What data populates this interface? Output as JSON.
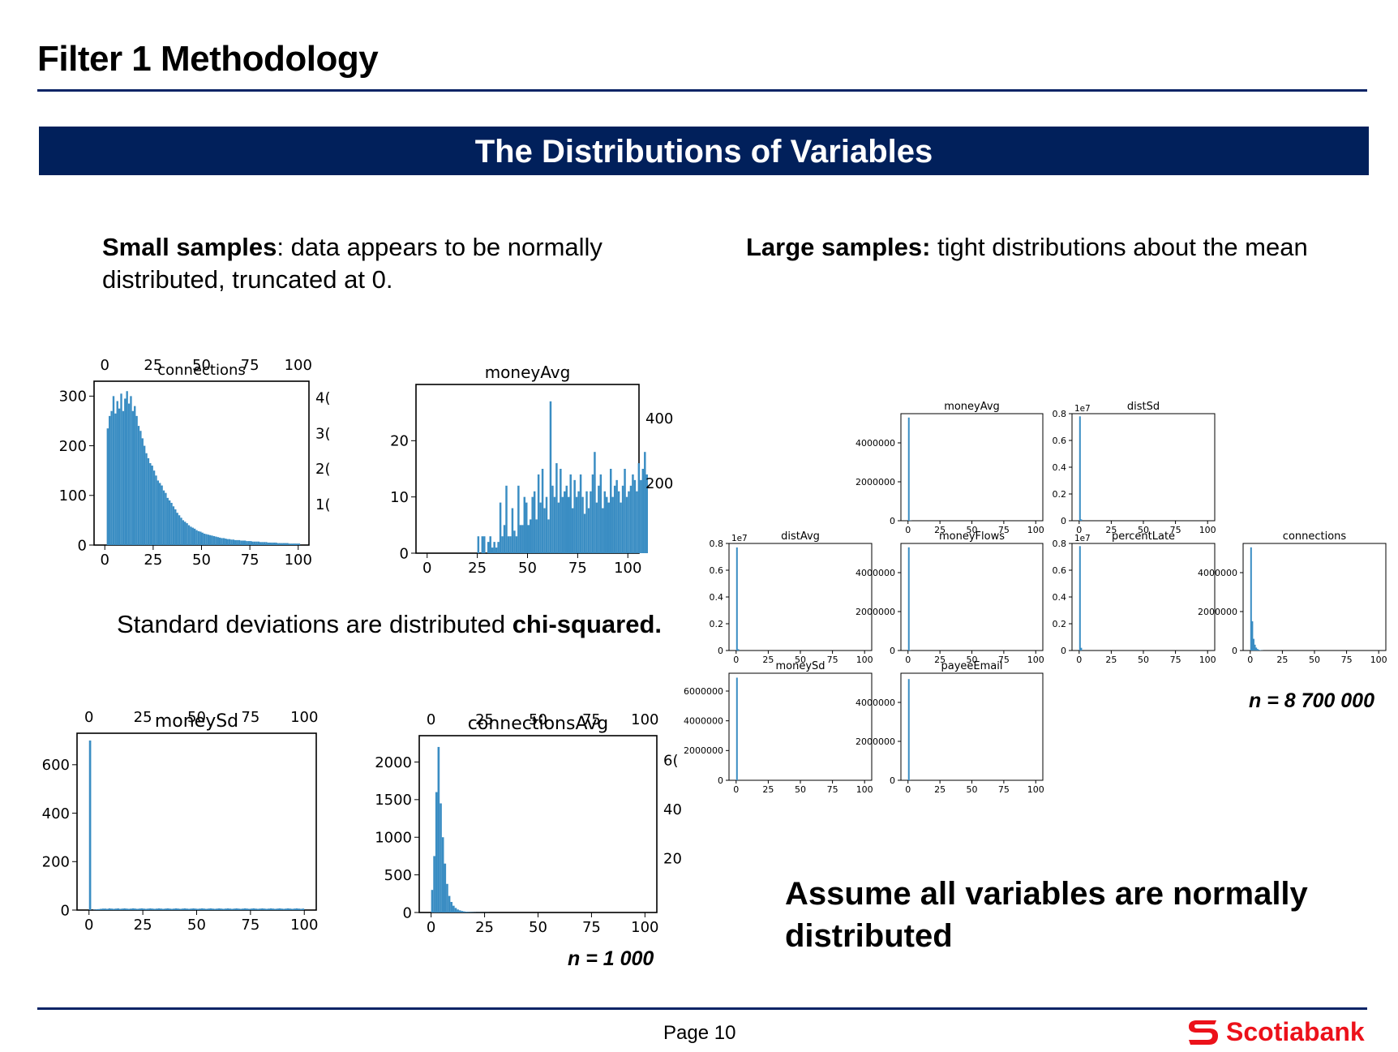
{
  "header": {
    "title": "Filter 1 Methodology"
  },
  "banner": {
    "text": "The Distributions of Variables"
  },
  "left": {
    "small_bold": "Small samples",
    "small_rest": ": data appears to be normally distributed, truncated at 0.",
    "std_prefix": "Standard deviations are distributed ",
    "std_bold": "chi-squared.",
    "n_label": "n = 1 000"
  },
  "right": {
    "large_bold": "Large samples:",
    "large_rest": " tight distributions about the mean",
    "n_label": "n = 8 700 000",
    "assume": "Assume all variables are normally distributed"
  },
  "footer": {
    "page": "Page 10",
    "brand": "Scotiabank"
  },
  "colors": {
    "navy": "#01205b",
    "bar": "#3a8dc3",
    "brand_red": "#ec111a"
  },
  "chart_data": [
    {
      "id": "s-connections",
      "type": "bar",
      "title": "connections",
      "xlim": [
        0,
        100
      ],
      "ylim": [
        0,
        330
      ],
      "x_ticks": [
        0,
        25,
        50,
        75,
        100
      ],
      "y_ticks": [
        0,
        100,
        200,
        300
      ],
      "top_ticks": [
        0,
        25,
        50,
        75,
        100
      ],
      "right_ticks": [
        "1(",
        "2(",
        "3(",
        "4("
      ],
      "bins_x0": 1,
      "bin_width": 1,
      "values": [
        235,
        260,
        270,
        300,
        265,
        290,
        275,
        305,
        270,
        295,
        310,
        285,
        300,
        270,
        280,
        260,
        240,
        230,
        215,
        200,
        185,
        175,
        165,
        160,
        150,
        140,
        130,
        125,
        120,
        110,
        105,
        95,
        90,
        85,
        78,
        72,
        65,
        60,
        55,
        50,
        47,
        44,
        40,
        37,
        35,
        33,
        30,
        28,
        27,
        25,
        23,
        22,
        21,
        20,
        19,
        18,
        17,
        16,
        15,
        14,
        14,
        13,
        12,
        12,
        11,
        11,
        10,
        10,
        10,
        9,
        9,
        9,
        8,
        8,
        8,
        7,
        7,
        7,
        7,
        6,
        6,
        6,
        6,
        5,
        5,
        5,
        5,
        5,
        4,
        4,
        4,
        4,
        4,
        4,
        3,
        3,
        3,
        3,
        3,
        3
      ]
    },
    {
      "id": "s-moneyavg",
      "type": "bar",
      "title": "moneyAvg",
      "xlim": [
        0,
        100
      ],
      "ylim": [
        0,
        30
      ],
      "x_ticks": [
        0,
        25,
        50,
        75,
        100
      ],
      "y_ticks": [
        0,
        10,
        20
      ],
      "right_ticks": [
        "200",
        "400"
      ],
      "bins_x0": 10,
      "bin_width": 1,
      "values": [
        0,
        0,
        0,
        0,
        0,
        0,
        0,
        0,
        0,
        0,
        0,
        0,
        0,
        0,
        0,
        3,
        0,
        3,
        3,
        0,
        2,
        3,
        1,
        2,
        1,
        2,
        9,
        3,
        5,
        12,
        3,
        3,
        8,
        4,
        3,
        12,
        5,
        5,
        10,
        9,
        5,
        6,
        10,
        11,
        6,
        14,
        9,
        15,
        8,
        10,
        6,
        27,
        12,
        10,
        16,
        9,
        15,
        10,
        11,
        12,
        10,
        14,
        8,
        13,
        10,
        11,
        14,
        10,
        7,
        11,
        8,
        11,
        14,
        18,
        9,
        12,
        14,
        8,
        11,
        10,
        9,
        15,
        10,
        12,
        13,
        11,
        9,
        12,
        15,
        10,
        11,
        12,
        14,
        13,
        11,
        16,
        13,
        15,
        18,
        14
      ]
    },
    {
      "id": "s-moneysd",
      "type": "bar",
      "title": "moneySd",
      "xlim": [
        0,
        100
      ],
      "ylim": [
        0,
        730
      ],
      "x_ticks": [
        0,
        25,
        50,
        75,
        100
      ],
      "y_ticks": [
        0,
        200,
        400,
        600
      ],
      "top_ticks": [
        0,
        25,
        50,
        75,
        100
      ],
      "bins_x0": 0,
      "bin_width": 1,
      "values": [
        700,
        0,
        2,
        3,
        4,
        5,
        6,
        6,
        5,
        7,
        6,
        5,
        6,
        7,
        5,
        6,
        7,
        6,
        5,
        6,
        7,
        6,
        5,
        6,
        7,
        6,
        5,
        6,
        7,
        6,
        5,
        6,
        7,
        6,
        5,
        6,
        7,
        6,
        5,
        6,
        7,
        6,
        5,
        6,
        7,
        6,
        5,
        6,
        7,
        6,
        5,
        6,
        7,
        6,
        5,
        6,
        7,
        6,
        5,
        6,
        7,
        6,
        5,
        6,
        7,
        6,
        5,
        6,
        7,
        6,
        5,
        6,
        7,
        6,
        5,
        6,
        7,
        6,
        5,
        6,
        7,
        6,
        5,
        6,
        7,
        6,
        5,
        6,
        7,
        6,
        5,
        6,
        7,
        6,
        5,
        6,
        7,
        6,
        5,
        6
      ]
    },
    {
      "id": "s-connectionsavg",
      "type": "bar",
      "title": "connectionsAvg",
      "xlim": [
        0,
        100
      ],
      "ylim": [
        0,
        2350
      ],
      "x_ticks": [
        0,
        25,
        50,
        75,
        100
      ],
      "y_ticks": [
        0,
        500,
        1000,
        1500,
        2000
      ],
      "top_ticks": [
        0,
        25,
        50,
        75,
        100
      ],
      "right_ticks": [
        "20",
        "40",
        "6("
      ],
      "bins_x0": 0,
      "bin_width": 1,
      "values": [
        300,
        750,
        1600,
        2200,
        1450,
        1000,
        650,
        380,
        220,
        140,
        90,
        60,
        40,
        28,
        20,
        14,
        10,
        7,
        5,
        4,
        3,
        2,
        2,
        1,
        1,
        1,
        1,
        0,
        0,
        0
      ]
    },
    {
      "id": "l-moneyavg",
      "type": "bar",
      "title": "moneyAvg",
      "xlim": [
        0,
        100
      ],
      "ylim": [
        0,
        5500000
      ],
      "x_ticks": [
        0,
        25,
        50,
        75,
        100
      ],
      "y_ticks": [
        0,
        2000000,
        4000000
      ],
      "bins_x0": 0,
      "bin_width": 1,
      "values": [
        5300000,
        10000,
        5000
      ]
    },
    {
      "id": "l-distsd",
      "type": "bar",
      "title": "distSd",
      "scale_label": "1e7",
      "xlim": [
        0,
        100
      ],
      "ylim": [
        0,
        0.8
      ],
      "x_ticks": [
        0,
        25,
        50,
        75,
        100
      ],
      "y_ticks": [
        0.0,
        0.2,
        0.4,
        0.6,
        0.8
      ],
      "bins_x0": 0,
      "bin_width": 1,
      "values": [
        0.78,
        0.01
      ]
    },
    {
      "id": "l-distavg",
      "type": "bar",
      "title": "distAvg",
      "scale_label": "1e7",
      "xlim": [
        0,
        100
      ],
      "ylim": [
        0,
        0.8
      ],
      "x_ticks": [
        0,
        25,
        50,
        75,
        100
      ],
      "y_ticks": [
        0.0,
        0.2,
        0.4,
        0.6,
        0.8
      ],
      "bins_x0": 0,
      "bin_width": 1,
      "values": [
        0.77,
        0.01
      ]
    },
    {
      "id": "l-moneyflows",
      "type": "bar",
      "title": "moneyFlows",
      "xlim": [
        0,
        100
      ],
      "ylim": [
        0,
        5500000
      ],
      "x_ticks": [
        0,
        25,
        50,
        75,
        100
      ],
      "y_ticks": [
        0,
        2000000,
        4000000
      ],
      "bins_x0": 0,
      "bin_width": 1,
      "values": [
        5300000,
        10000
      ]
    },
    {
      "id": "l-percentlate",
      "type": "bar",
      "title": "percentLate",
      "scale_label": "1e7",
      "xlim": [
        0,
        100
      ],
      "ylim": [
        0,
        0.8
      ],
      "x_ticks": [
        0,
        25,
        50,
        75,
        100
      ],
      "y_ticks": [
        0.0,
        0.2,
        0.4,
        0.6,
        0.8
      ],
      "bins_x0": 0,
      "bin_width": 1,
      "values": [
        0.78,
        0.02
      ]
    },
    {
      "id": "l-connections",
      "type": "bar",
      "title": "connections",
      "xlim": [
        0,
        100
      ],
      "ylim": [
        0,
        5500000
      ],
      "x_ticks": [
        0,
        25,
        50,
        75,
        100
      ],
      "y_ticks": [
        0,
        2000000,
        4000000
      ],
      "bins_x0": 0,
      "bin_width": 1,
      "values": [
        5300000,
        1500000,
        600000,
        300000,
        150000,
        80000,
        40000,
        20000,
        10000,
        5000
      ]
    },
    {
      "id": "l-moneysd",
      "type": "bar",
      "title": "moneySd",
      "xlim": [
        0,
        100
      ],
      "ylim": [
        0,
        7200000
      ],
      "x_ticks": [
        0,
        25,
        50,
        75,
        100
      ],
      "y_ticks": [
        0,
        2000000,
        4000000,
        6000000
      ],
      "bins_x0": 0,
      "bin_width": 1,
      "values": [
        6900000,
        5000
      ]
    },
    {
      "id": "l-payeeemail",
      "type": "bar",
      "title": "payeeEmail",
      "xlim": [
        0,
        100
      ],
      "ylim": [
        0,
        5500000
      ],
      "x_ticks": [
        0,
        25,
        50,
        75,
        100
      ],
      "y_ticks": [
        0,
        2000000,
        4000000
      ],
      "bins_x0": 0,
      "bin_width": 1,
      "values": [
        5200000,
        5000
      ]
    }
  ]
}
